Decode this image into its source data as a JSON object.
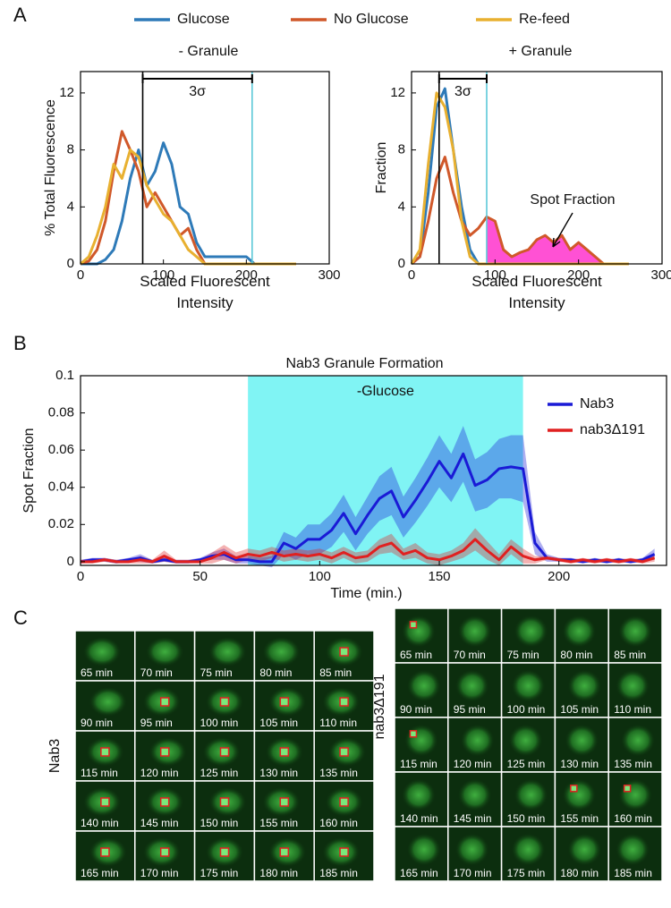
{
  "chart_data": [
    {
      "type": "line",
      "panel_label": "A",
      "title": "- Granule",
      "ylabel": "% Total Fluorescence",
      "xlabel": "Scaled Fluorescent Intensity",
      "x": [
        0,
        10,
        20,
        30,
        40,
        50,
        60,
        70,
        80,
        90,
        100,
        110,
        120,
        130,
        140,
        150,
        160,
        170,
        180,
        190,
        200,
        210,
        220,
        230,
        240,
        250,
        260
      ],
      "series": [
        {
          "name": "Glucose",
          "color": "#2e7ab8",
          "values": [
            0,
            0,
            0,
            0.3,
            1,
            3,
            6,
            8,
            5.5,
            6.5,
            8.5,
            7,
            4,
            3.5,
            1.5,
            0.5,
            0.5,
            0.5,
            0.5,
            0.5,
            0.5,
            0,
            0,
            0,
            0,
            0,
            0
          ]
        },
        {
          "name": "No Glucose",
          "color": "#d0582a",
          "values": [
            0,
            0.2,
            1,
            3,
            6.5,
            9.3,
            8,
            6.5,
            4,
            5,
            4,
            3,
            2,
            2.5,
            1,
            0,
            0,
            0,
            0,
            0,
            0,
            0,
            0,
            0,
            0,
            0,
            0
          ]
        },
        {
          "name": "Re-feed",
          "color": "#e8b030",
          "values": [
            0,
            0.5,
            2,
            4,
            7,
            6,
            8,
            7.5,
            5.5,
            4.5,
            3.5,
            3,
            2,
            1,
            0.5,
            0,
            0,
            0,
            0,
            0,
            0,
            0,
            0,
            0,
            0,
            0,
            0
          ]
        }
      ],
      "xlim": [
        0,
        300
      ],
      "ylim": [
        0,
        13.5
      ],
      "xticks": [
        0,
        100,
        200,
        300
      ],
      "yticks": [
        0,
        4,
        8,
        12
      ],
      "vlines": [
        {
          "x": 75,
          "color": "#000000"
        },
        {
          "x": 207,
          "color": "#5bc8d8"
        }
      ],
      "bracket_label": "3σ"
    },
    {
      "type": "line",
      "title": "+ Granule",
      "ylabel": "Fraction",
      "xlabel": "Scaled Fluorescent Intensity",
      "x": [
        0,
        10,
        20,
        30,
        40,
        50,
        60,
        70,
        80,
        90,
        100,
        110,
        120,
        130,
        140,
        150,
        160,
        170,
        180,
        190,
        200,
        210,
        220,
        230,
        240,
        250,
        260
      ],
      "series": [
        {
          "color": "#2e7ab8",
          "values": [
            0,
            0.5,
            5,
            11,
            12.3,
            8,
            4,
            1,
            0,
            0,
            0,
            0,
            0,
            0,
            0,
            0,
            0,
            0,
            0,
            0,
            0,
            0,
            0,
            0,
            0,
            0,
            0
          ]
        },
        {
          "color": "#d0582a",
          "values": [
            0,
            0.5,
            3,
            6,
            7.5,
            5,
            3,
            2,
            2.5,
            3.3,
            3,
            1,
            0.5,
            0.8,
            1,
            1.7,
            2,
            1.5,
            2,
            1,
            1.5,
            1,
            0.5,
            0,
            0,
            0,
            0
          ]
        },
        {
          "color": "#e8b030",
          "values": [
            0,
            1,
            7,
            12,
            11,
            8,
            3,
            0.5,
            0,
            0,
            0,
            0,
            0,
            0,
            0,
            0,
            0,
            0,
            0,
            0,
            0,
            0,
            0,
            0,
            0,
            0,
            0
          ]
        }
      ],
      "xlim": [
        0,
        300
      ],
      "ylim": [
        0,
        13.5
      ],
      "xticks": [
        0,
        100,
        200,
        300
      ],
      "yticks": [
        0,
        4,
        8,
        12
      ],
      "vlines": [
        {
          "x": 33,
          "color": "#000000"
        },
        {
          "x": 90,
          "color": "#5bc8d8"
        }
      ],
      "bracket_label": "3σ",
      "shade_from": 90,
      "shade_color": "#ff33cc",
      "annotation": "Spot Fraction"
    },
    {
      "type": "line",
      "panel_label": "B",
      "title": "Nab3 Granule Formation",
      "ylabel": "Spot Fraction",
      "xlabel": "Time (min.)",
      "x": [
        0,
        5,
        10,
        15,
        20,
        25,
        30,
        35,
        40,
        45,
        50,
        55,
        60,
        65,
        70,
        75,
        80,
        85,
        90,
        95,
        100,
        105,
        110,
        115,
        120,
        125,
        130,
        135,
        140,
        145,
        150,
        155,
        160,
        165,
        170,
        175,
        180,
        185,
        190,
        195,
        200,
        205,
        210,
        215,
        220,
        225,
        230,
        235,
        240
      ],
      "series": [
        {
          "name": "Nab3",
          "color": "#1a1ad6",
          "values": [
            0,
            0.001,
            0.001,
            0,
            0.001,
            0.002,
            0,
            0.001,
            0,
            0,
            0.001,
            0.003,
            0.004,
            0.001,
            0.001,
            0,
            0,
            0.01,
            0.007,
            0.012,
            0.012,
            0.017,
            0.026,
            0.015,
            0.025,
            0.034,
            0.038,
            0.024,
            0.033,
            0.043,
            0.054,
            0.045,
            0.058,
            0.041,
            0.044,
            0.05,
            0.051,
            0.05,
            0.01,
            0.002,
            0.001,
            0.001,
            0,
            0.001,
            0,
            0.001,
            0,
            0.001,
            0.004
          ],
          "error": [
            0.001,
            0.001,
            0.001,
            0.001,
            0.001,
            0.002,
            0.001,
            0.001,
            0.001,
            0.001,
            0.001,
            0.002,
            0.003,
            0.002,
            0.002,
            0.002,
            0.003,
            0.006,
            0.006,
            0.008,
            0.008,
            0.009,
            0.01,
            0.009,
            0.01,
            0.012,
            0.013,
            0.011,
            0.012,
            0.013,
            0.014,
            0.013,
            0.015,
            0.014,
            0.015,
            0.016,
            0.017,
            0.018,
            0.006,
            0.002,
            0.001,
            0.001,
            0.001,
            0.001,
            0.001,
            0.001,
            0.001,
            0.001,
            0.003
          ]
        },
        {
          "name": "nab3Δ191",
          "color": "#e02020",
          "values": [
            0,
            0,
            0.001,
            0,
            0,
            0.001,
            0,
            0.003,
            0,
            0,
            0,
            0.002,
            0.005,
            0.002,
            0.004,
            0.003,
            0.005,
            0.003,
            0.004,
            0.003,
            0.004,
            0.002,
            0.005,
            0.002,
            0.003,
            0.008,
            0.01,
            0.004,
            0.006,
            0.002,
            0.001,
            0.003,
            0.006,
            0.012,
            0.006,
            0.001,
            0.008,
            0.003,
            0.001,
            0.002,
            0.001,
            0,
            0.001,
            0,
            0.001,
            0,
            0.001,
            0,
            0.002
          ],
          "error": [
            0.001,
            0.001,
            0.001,
            0.001,
            0.001,
            0.002,
            0.001,
            0.003,
            0.001,
            0.001,
            0.001,
            0.003,
            0.004,
            0.003,
            0.003,
            0.003,
            0.003,
            0.003,
            0.003,
            0.003,
            0.003,
            0.003,
            0.003,
            0.003,
            0.003,
            0.004,
            0.005,
            0.003,
            0.004,
            0.003,
            0.003,
            0.003,
            0.004,
            0.006,
            0.005,
            0.003,
            0.004,
            0.004,
            0.002,
            0.001,
            0.001,
            0.001,
            0.001,
            0.001,
            0.001,
            0.001,
            0.001,
            0.001,
            0.002
          ]
        }
      ],
      "xlim": [
        0,
        245
      ],
      "ylim": [
        -0.002,
        0.1
      ],
      "xticks": [
        0,
        50,
        100,
        150,
        200
      ],
      "yticks": [
        0,
        0.02,
        0.04,
        0.06,
        0.08,
        0.1
      ],
      "highlight": {
        "from": 70,
        "to": 185,
        "label": "-Glucose",
        "color": "#80f4f4"
      },
      "legend": "upper right"
    }
  ],
  "panel_c": {
    "label": "C",
    "groups": [
      {
        "name": "Nab3",
        "tiles": [
          "65 min",
          "70 min",
          "75 min",
          "80 min",
          "85 min",
          "90 min",
          "95 min",
          "100 min",
          "105 min",
          "110 min",
          "115 min",
          "120 min",
          "125 min",
          "130 min",
          "135 min",
          "140 min",
          "145 min",
          "150 min",
          "155 min",
          "160 min",
          "165 min",
          "170 min",
          "175 min",
          "180 min",
          "185 min"
        ]
      },
      {
        "name": "nab3Δ191",
        "tiles": [
          "65 min",
          "70 min",
          "75 min",
          "80 min",
          "85 min",
          "90 min",
          "95 min",
          "100 min",
          "105 min",
          "110 min",
          "115 min",
          "120 min",
          "125 min",
          "130 min",
          "135 min",
          "140 min",
          "145 min",
          "150 min",
          "155 min",
          "160 min",
          "165 min",
          "170 min",
          "175 min",
          "180 min",
          "185 min"
        ]
      }
    ]
  }
}
